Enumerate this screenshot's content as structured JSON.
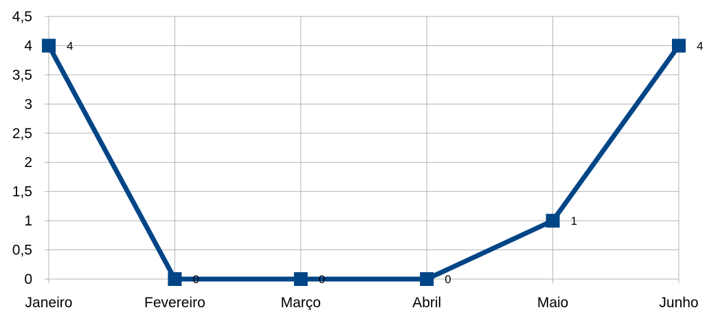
{
  "chart_data": {
    "type": "line",
    "categories": [
      "Janeiro",
      "Fevereiro",
      "Março",
      "Abril",
      "Maio",
      "Junho"
    ],
    "series": [
      {
        "values": [
          4,
          0,
          0,
          0,
          1,
          4
        ]
      }
    ],
    "y_ticks": [
      "0",
      "0,5",
      "1",
      "1,5",
      "2",
      "2,5",
      "3",
      "3,5",
      "4",
      "4,5"
    ],
    "ylim": [
      0,
      4.5
    ],
    "grid": true,
    "legend": "none",
    "data_labels": true,
    "colors": {
      "line": "#004586",
      "grid": "#b3b3b3",
      "axis": "#b3b3b3"
    }
  }
}
